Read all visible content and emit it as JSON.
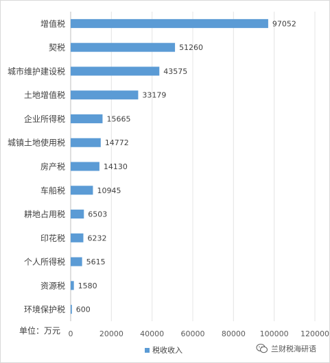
{
  "chart_data": {
    "type": "bar",
    "orientation": "horizontal",
    "categories": [
      "增值税",
      "契税",
      "城市维护建设税",
      "土地增值税",
      "企业所得税",
      "城镇土地使用税",
      "房产税",
      "车船税",
      "耕地占用税",
      "印花税",
      "个人所得税",
      "资源税",
      "环境保护税"
    ],
    "series": [
      {
        "name": "税收收入",
        "values": [
          97052,
          51260,
          43575,
          33179,
          15665,
          14772,
          14130,
          10945,
          6503,
          6232,
          5615,
          1580,
          600
        ]
      }
    ],
    "xlim": [
      0,
      120000
    ],
    "xticks": [
      0,
      20000,
      40000,
      60000,
      80000,
      100000,
      120000
    ],
    "xtick_labels": [
      "0",
      "20000",
      "40000",
      "60000",
      "80000",
      "100000",
      "120000"
    ],
    "unit_label": "单位：万元",
    "legend_position": "bottom",
    "grid": "vertical",
    "bar_color": "#5b9bd5"
  },
  "watermark": {
    "text": "兰财税海研语",
    "icon": "wechat-icon"
  }
}
